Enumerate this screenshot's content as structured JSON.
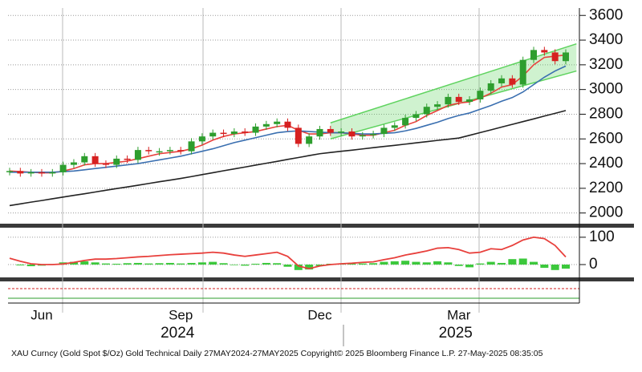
{
  "chart_data": {
    "type": "candlestick",
    "footer": "XAU Curncy (Gold Spot  $/Oz) Gold Technical  Daily 27MAY2024-27MAY2025  Copyright© 2025 Bloomberg Finance L.P.  27-May-2025 08:35:05",
    "categories": [
      null,
      null,
      null,
      "Jun",
      null,
      null,
      null,
      null,
      null,
      null,
      null,
      null,
      null,
      null,
      null,
      null,
      "Sep",
      null,
      null,
      null,
      null,
      null,
      null,
      null,
      null,
      null,
      null,
      null,
      null,
      "Dec",
      null,
      null,
      null,
      null,
      null,
      null,
      null,
      null,
      null,
      null,
      null,
      null,
      "Mar",
      null,
      null,
      null,
      null,
      null,
      null,
      null,
      null,
      null,
      null
    ],
    "year_labels": [
      "2024",
      "2025"
    ],
    "ylim": [
      1920,
      3660
    ],
    "yticks": [
      2000,
      2200,
      2400,
      2600,
      2800,
      3000,
      3200,
      3400,
      3600
    ],
    "grid": true,
    "up_color": "#2e9e2e",
    "down_color": "#d62020",
    "series": [
      {
        "values": [
          2340,
          2320,
          2330,
          2320,
          2330,
          2390,
          2410,
          2460,
          2400,
          2390,
          2440,
          2430,
          2510,
          2500,
          2500,
          2510,
          2500,
          2580,
          2620,
          2650,
          2640,
          2660,
          2650,
          2700,
          2720,
          2740,
          2690,
          2560,
          2620,
          2680,
          2650,
          2660,
          2620,
          2630,
          2640,
          2690,
          2710,
          2770,
          2800,
          2860,
          2880,
          2940,
          2900,
          2920,
          2990,
          3050,
          3090,
          3040,
          3240,
          3320,
          3300,
          3230,
          3300
        ]
      },
      {
        "color": "#e8403c",
        "values": [
          2340,
          2335,
          2330,
          2325,
          2325,
          2340,
          2360,
          2390,
          2400,
          2400,
          2410,
          2420,
          2440,
          2460,
          2480,
          2490,
          2500,
          2520,
          2550,
          2590,
          2620,
          2640,
          2650,
          2660,
          2680,
          2700,
          2710,
          2670,
          2640,
          2640,
          2650,
          2650,
          2640,
          2630,
          2630,
          2650,
          2670,
          2710,
          2740,
          2790,
          2830,
          2870,
          2890,
          2900,
          2930,
          2970,
          3020,
          3040,
          3110,
          3200,
          3260,
          3270,
          3280
        ]
      },
      {
        "color": "#3a6fb0",
        "values": [
          2330,
          2330,
          2330,
          2330,
          2330,
          2335,
          2340,
          2350,
          2360,
          2370,
          2380,
          2390,
          2400,
          2415,
          2430,
          2445,
          2460,
          2480,
          2500,
          2520,
          2545,
          2570,
          2590,
          2610,
          2630,
          2650,
          2660,
          2665,
          2660,
          2655,
          2650,
          2650,
          2645,
          2640,
          2640,
          2645,
          2650,
          2665,
          2685,
          2710,
          2735,
          2765,
          2790,
          2810,
          2840,
          2870,
          2905,
          2935,
          2980,
          3040,
          3100,
          3150,
          3190
        ]
      },
      {
        "color": "#222222",
        "values": [
          2060,
          2074,
          2088,
          2101,
          2115,
          2129,
          2143,
          2156,
          2170,
          2184,
          2198,
          2211,
          2225,
          2239,
          2253,
          2266,
          2280,
          2295,
          2311,
          2326,
          2342,
          2357,
          2372,
          2388,
          2403,
          2418,
          2434,
          2449,
          2465,
          2480,
          2490,
          2500,
          2509,
          2519,
          2529,
          2539,
          2548,
          2558,
          2568,
          2578,
          2588,
          2597,
          2607,
          2629,
          2651,
          2673,
          2696,
          2718,
          2740,
          2762,
          2785,
          2807,
          2830
        ]
      }
    ],
    "channel": {
      "color": "#5fd35f",
      "x": [
        30,
        53
      ],
      "upper": [
        2730,
        3370
      ],
      "lower": [
        2600,
        3150
      ]
    },
    "indicator": {
      "ylim": [
        -44,
        132
      ],
      "yticks": [
        0,
        100
      ],
      "line_color": "#e8403c",
      "bar_color": "#3cc83c",
      "line": [
        23,
        12,
        3,
        0,
        0,
        2,
        8,
        15,
        20,
        20,
        22,
        25,
        28,
        30,
        33,
        36,
        38,
        40,
        42,
        45,
        42,
        35,
        30,
        35,
        40,
        45,
        30,
        -5,
        -15,
        -5,
        0,
        3,
        5,
        8,
        10,
        18,
        25,
        35,
        42,
        50,
        60,
        62,
        55,
        42,
        45,
        58,
        55,
        70,
        90,
        100,
        95,
        70,
        28
      ],
      "bars": [
        0,
        -3,
        -6,
        -4,
        2,
        8,
        10,
        12,
        8,
        4,
        3,
        5,
        6,
        4,
        5,
        6,
        4,
        6,
        8,
        10,
        5,
        -2,
        -4,
        3,
        6,
        5,
        -8,
        -20,
        -18,
        -5,
        3,
        4,
        3,
        4,
        5,
        10,
        12,
        14,
        10,
        8,
        12,
        8,
        -5,
        -10,
        4,
        10,
        6,
        20,
        22,
        10,
        -12,
        -20,
        -15
      ]
    }
  }
}
